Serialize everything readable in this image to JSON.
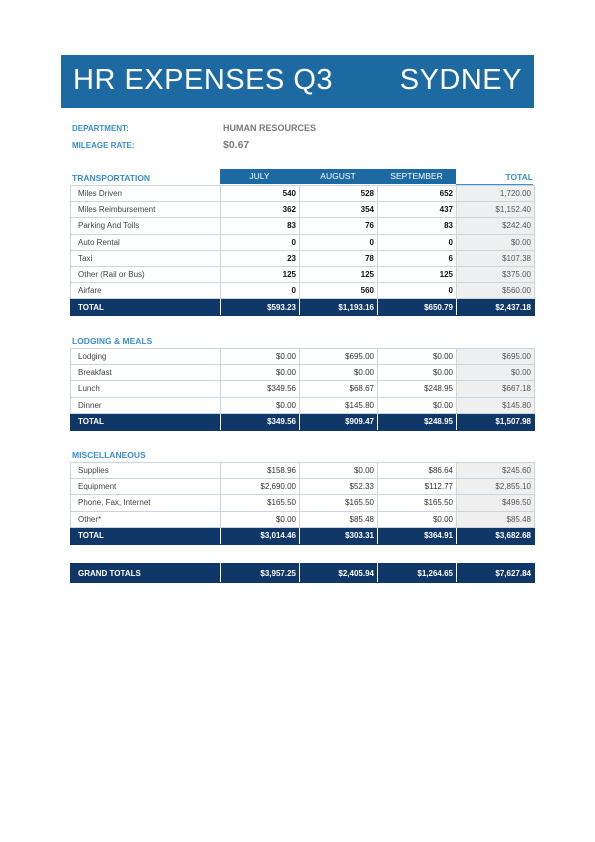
{
  "header": {
    "title": "HR EXPENSES Q3",
    "city": "SYDNEY"
  },
  "meta": {
    "department_label": "DEPARTMENT:",
    "department_value": "HUMAN RESOURCES",
    "mileage_label": "MILEAGE RATE:",
    "mileage_value": "$0.67"
  },
  "columns": {
    "july": "JULY",
    "august": "AUGUST",
    "september": "SEPTEMBER",
    "total": "TOTAL"
  },
  "transportation": {
    "title": "TRANSPORTATION",
    "rows": [
      {
        "label": "Miles Driven",
        "jul": "540",
        "aug": "528",
        "sep": "652",
        "total": "1,720.00"
      },
      {
        "label": "Miles Reimbursement",
        "jul": "362",
        "aug": "354",
        "sep": "437",
        "total": "$1,152.40"
      },
      {
        "label": "Parking And Tolls",
        "jul": "83",
        "aug": "76",
        "sep": "83",
        "total": "$242.40"
      },
      {
        "label": "Auto Rental",
        "jul": "0",
        "aug": "0",
        "sep": "0",
        "total": "$0.00"
      },
      {
        "label": "Taxi",
        "jul": "23",
        "aug": "78",
        "sep": "6",
        "total": "$107.38"
      },
      {
        "label": "Other (Rail or Bus)",
        "jul": "125",
        "aug": "125",
        "sep": "125",
        "total": "$375.00"
      },
      {
        "label": "Airfare",
        "jul": "0",
        "aug": "560",
        "sep": "0",
        "total": "$560.00"
      }
    ],
    "totals": {
      "label": "TOTAL",
      "jul": "$593.23",
      "aug": "$1,193.16",
      "sep": "$650.79",
      "total": "$2,437.18"
    }
  },
  "lodging": {
    "title": "LODGING & MEALS",
    "rows": [
      {
        "label": "Lodging",
        "jul": "$0.00",
        "aug": "$695.00",
        "sep": "$0.00",
        "total": "$695.00"
      },
      {
        "label": "Breakfast",
        "jul": "$0.00",
        "aug": "$0.00",
        "sep": "$0.00",
        "total": "$0.00"
      },
      {
        "label": "Lunch",
        "jul": "$349.56",
        "aug": "$68.67",
        "sep": "$248.95",
        "total": "$667.18"
      },
      {
        "label": "Dinner",
        "jul": "$0.00",
        "aug": "$145.80",
        "sep": "$0.00",
        "total": "$145.80"
      }
    ],
    "totals": {
      "label": "TOTAL",
      "jul": "$349.56",
      "aug": "$909.47",
      "sep": "$248.95",
      "total": "$1,507.98"
    }
  },
  "misc": {
    "title": "MISCELLANEOUS",
    "rows": [
      {
        "label": "Supplies",
        "jul": "$158.96",
        "aug": "$0.00",
        "sep": "$86.64",
        "total": "$245.60"
      },
      {
        "label": "Equipment",
        "jul": "$2,690.00",
        "aug": "$52.33",
        "sep": "$112.77",
        "total": "$2,855.10"
      },
      {
        "label": "Phone, Fax, Internet",
        "jul": "$165.50",
        "aug": "$165.50",
        "sep": "$165.50",
        "total": "$496.50"
      },
      {
        "label": "Other*",
        "jul": "$0.00",
        "aug": "$85.48",
        "sep": "$0.00",
        "total": "$85.48"
      }
    ],
    "totals": {
      "label": "TOTAL",
      "jul": "$3,014.46",
      "aug": "$303.31",
      "sep": "$364.91",
      "total": "$3,682.68"
    }
  },
  "grand": {
    "label": "GRAND TOTALS",
    "jul": "$3,957.25",
    "aug": "$2,405.94",
    "sep": "$1,264.65",
    "total": "$7,627.84"
  },
  "colors": {
    "banner": "#1d6aa2",
    "accent": "#3a8fd0",
    "total_row": "#0f3768"
  }
}
